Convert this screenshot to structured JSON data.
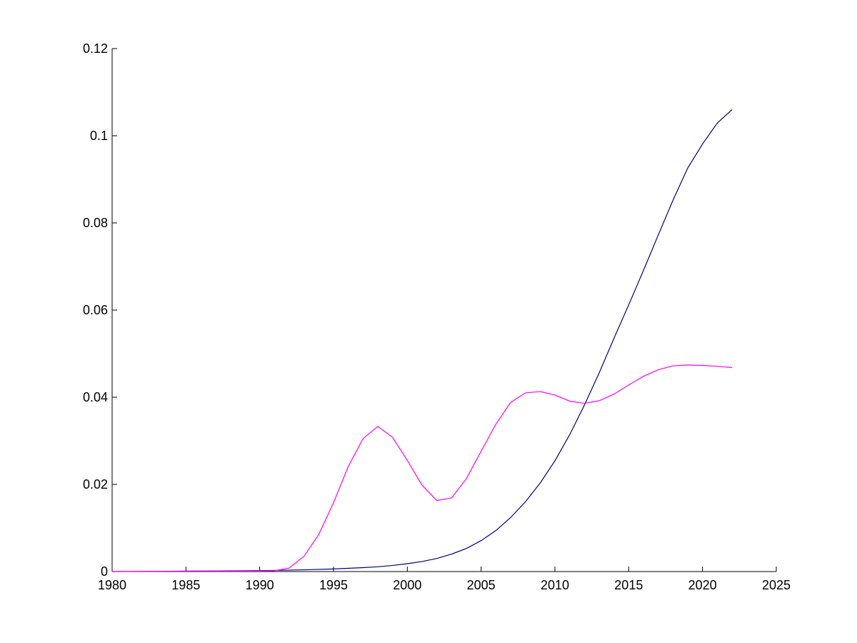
{
  "chart_data": {
    "type": "line",
    "title": "",
    "xlabel": "",
    "ylabel": "",
    "xlim": [
      1980,
      2025
    ],
    "ylim": [
      0,
      0.12
    ],
    "grid": false,
    "legend": "none",
    "x_ticks": [
      1980,
      1985,
      1990,
      1995,
      2000,
      2005,
      2010,
      2015,
      2020,
      2025
    ],
    "x_tick_labels": [
      "1980",
      "1985",
      "1990",
      "1995",
      "2000",
      "2005",
      "2010",
      "2015",
      "2020",
      "2025"
    ],
    "y_ticks": [
      0,
      0.02,
      0.04,
      0.06,
      0.08,
      0.1,
      0.12
    ],
    "y_tick_labels": [
      "0",
      "0.02",
      "0.04",
      "0.06",
      "0.08",
      "0.1",
      "0.12"
    ],
    "series": [
      {
        "color": "#00007f",
        "x": [
          1980,
          1985,
          1990,
          1993,
          1995,
          1997,
          1998,
          1999,
          2000,
          2001,
          2002,
          2003,
          2004,
          2005,
          2006,
          2007,
          2008,
          2009,
          2010,
          2011,
          2012,
          2013,
          2014,
          2015,
          2016,
          2017,
          2018,
          2019,
          2020,
          2021,
          2022
        ],
        "y": [
          0,
          0.0001,
          0.0002,
          0.0004,
          0.0006,
          0.0009,
          0.0011,
          0.0014,
          0.0018,
          0.0023,
          0.003,
          0.004,
          0.0053,
          0.0071,
          0.0094,
          0.0124,
          0.016,
          0.0203,
          0.0254,
          0.0314,
          0.0382,
          0.0456,
          0.0535,
          0.0612,
          0.0691,
          0.0772,
          0.0852,
          0.0926,
          0.0981,
          0.1029,
          0.106
        ]
      },
      {
        "color": "#ff00ff",
        "x": [
          1980,
          1985,
          1990,
          1991,
          1992,
          1993,
          1994,
          1995,
          1996,
          1997,
          1998,
          1999,
          2000,
          2001,
          2002,
          2003,
          2004,
          2005,
          2006,
          2007,
          2008,
          2009,
          2010,
          2011,
          2012,
          2013,
          2014,
          2015,
          2016,
          2017,
          2018,
          2019,
          2020,
          2021,
          2022
        ],
        "y": [
          0,
          0.0001,
          0.0001,
          0.0002,
          0.0008,
          0.0035,
          0.0085,
          0.0158,
          0.0241,
          0.0305,
          0.0333,
          0.0308,
          0.0255,
          0.0198,
          0.0163,
          0.0169,
          0.0213,
          0.0276,
          0.0338,
          0.0388,
          0.041,
          0.0413,
          0.0405,
          0.0391,
          0.0386,
          0.0392,
          0.0407,
          0.0428,
          0.0448,
          0.0463,
          0.0472,
          0.0474,
          0.0473,
          0.0471,
          0.0468
        ]
      }
    ]
  }
}
